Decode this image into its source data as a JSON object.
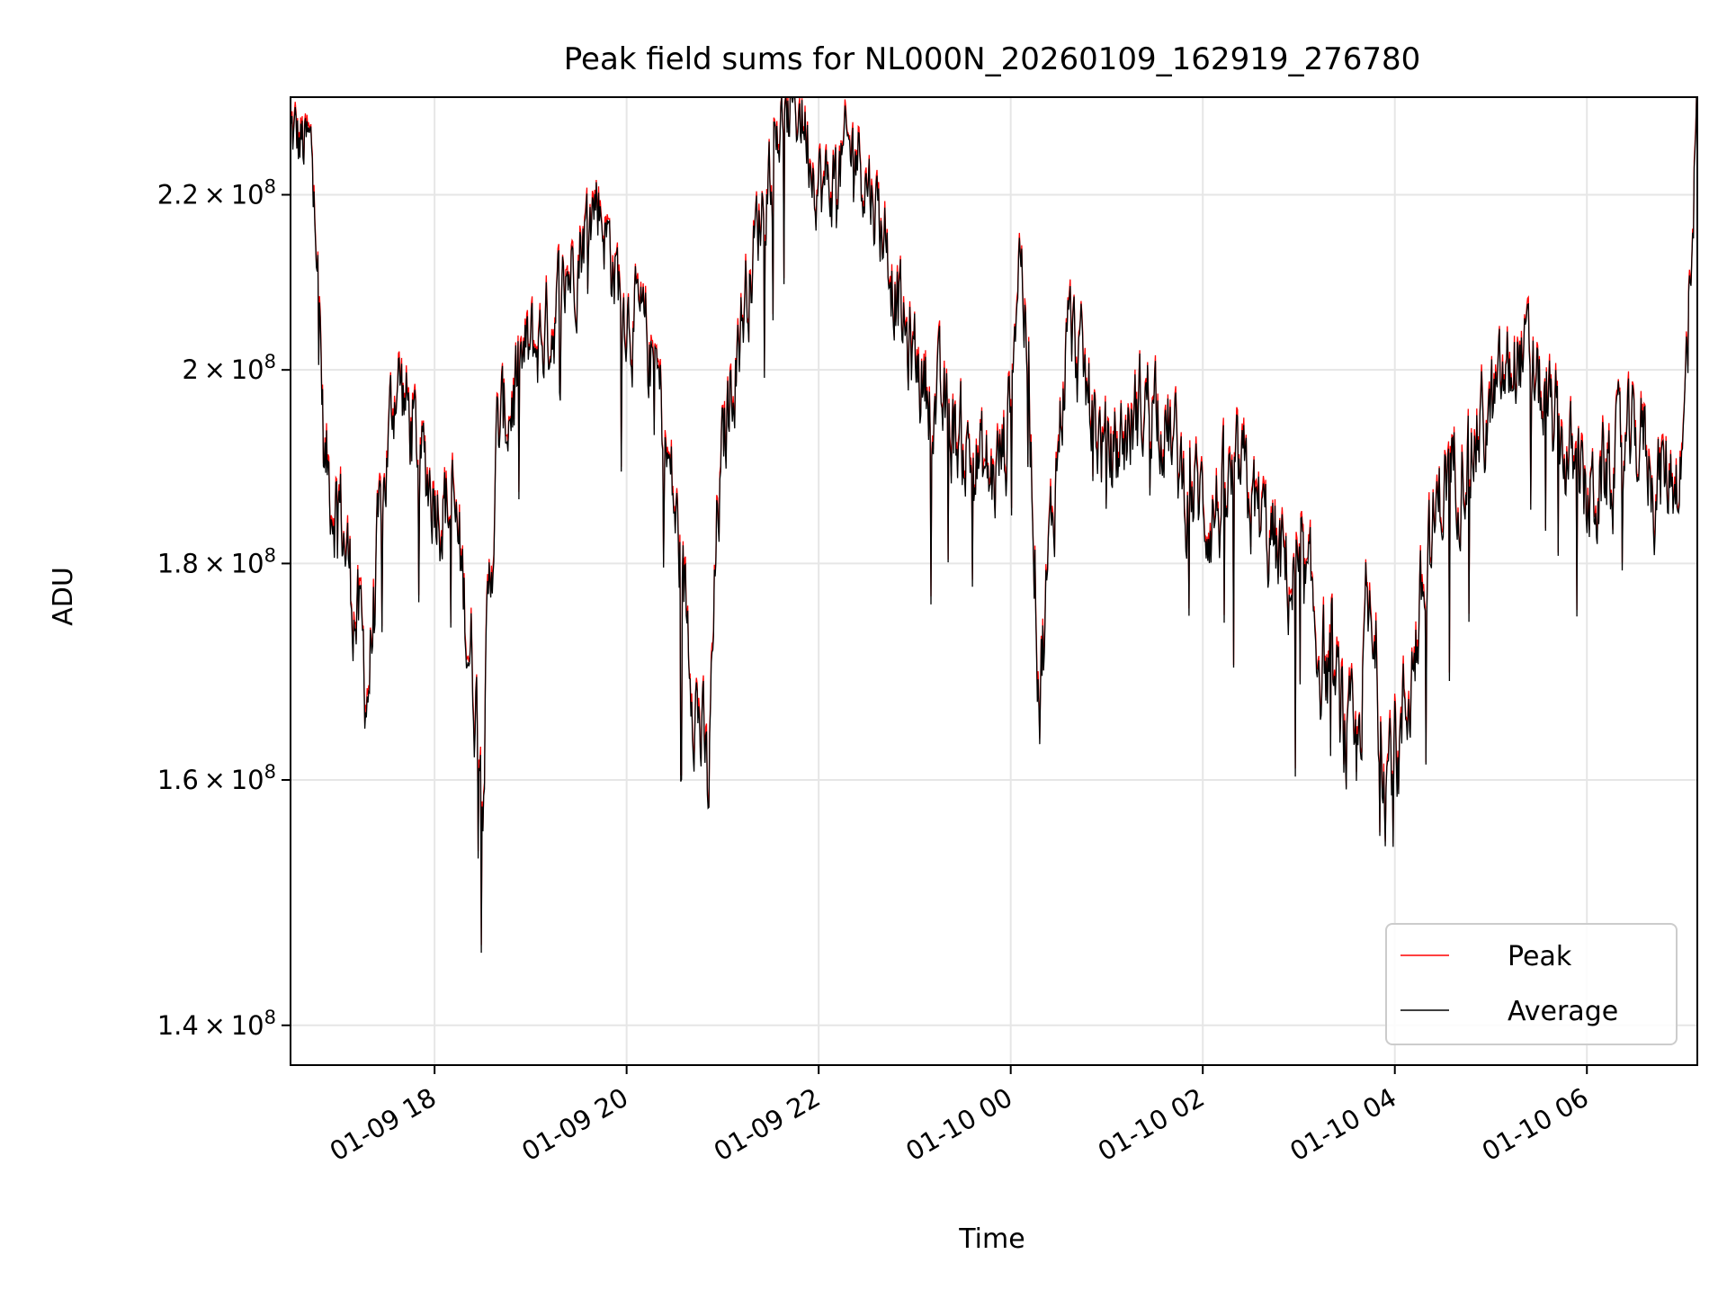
{
  "chart_data": {
    "type": "line",
    "title": "Peak field sums for NL000N_20260109_162919_276780",
    "xlabel": "Time",
    "ylabel": "ADU",
    "y_scale": "log",
    "xlim_hours": [
      16.5,
      31.15
    ],
    "ylim": [
      137000000,
      232000000
    ],
    "grid": true,
    "legend_position": "lower right",
    "x_ticks": [
      {
        "hour": 18,
        "label": "01-09 18"
      },
      {
        "hour": 20,
        "label": "01-09 20"
      },
      {
        "hour": 22,
        "label": "01-09 22"
      },
      {
        "hour": 24,
        "label": "01-10 00"
      },
      {
        "hour": 26,
        "label": "01-10 02"
      },
      {
        "hour": 28,
        "label": "01-10 04"
      },
      {
        "hour": 30,
        "label": "01-10 06"
      }
    ],
    "y_ticks": [
      {
        "value": 140000000,
        "mantissa": "1.4",
        "exp": "8"
      },
      {
        "value": 160000000,
        "mantissa": "1.6",
        "exp": "8"
      },
      {
        "value": 180000000,
        "mantissa": "1.8",
        "exp": "8"
      },
      {
        "value": 200000000,
        "mantissa": "2",
        "exp": "8"
      },
      {
        "value": 220000000,
        "mantissa": "2.2",
        "exp": "8"
      }
    ],
    "series": [
      {
        "name": "Peak",
        "color": "#ff0000",
        "offset": 600000
      },
      {
        "name": "Average",
        "color": "#000000",
        "offset": 0
      }
    ],
    "anchors_hours": [
      16.5,
      16.75,
      16.85,
      17.0,
      17.3,
      17.5,
      17.6,
      17.85,
      18.2,
      18.5,
      18.65,
      18.9,
      19.2,
      19.7,
      19.9,
      20.3,
      20.5,
      20.85,
      20.95,
      21.1,
      21.35,
      21.55,
      21.8,
      22.05,
      22.4,
      22.7,
      22.9,
      23.3,
      23.8,
      23.95,
      24.1,
      24.2,
      24.3,
      24.6,
      24.8,
      25.0,
      25.5,
      25.8,
      26.1,
      26.4,
      26.8,
      27.1,
      27.5,
      27.6,
      27.7,
      27.9,
      28.05,
      28.5,
      29.0,
      29.3,
      29.7,
      30.0,
      30.3,
      30.6,
      30.7,
      31.0,
      31.15
    ],
    "anchors_values": [
      227000000,
      224000000,
      190000000,
      186000000,
      168000000,
      190000000,
      200000000,
      190000000,
      185000000,
      162000000,
      192000000,
      200000000,
      205000000,
      220000000,
      210000000,
      200000000,
      185000000,
      158000000,
      185000000,
      200000000,
      215000000,
      228000000,
      231000000,
      220000000,
      226000000,
      215000000,
      203000000,
      195000000,
      188000000,
      192000000,
      215000000,
      195000000,
      168000000,
      205000000,
      197000000,
      190000000,
      198000000,
      188000000,
      185000000,
      188000000,
      180000000,
      176000000,
      163000000,
      160000000,
      175000000,
      162000000,
      163000000,
      188000000,
      195000000,
      202000000,
      193000000,
      186000000,
      190000000,
      193000000,
      188000000,
      190000000,
      232000000
    ]
  }
}
